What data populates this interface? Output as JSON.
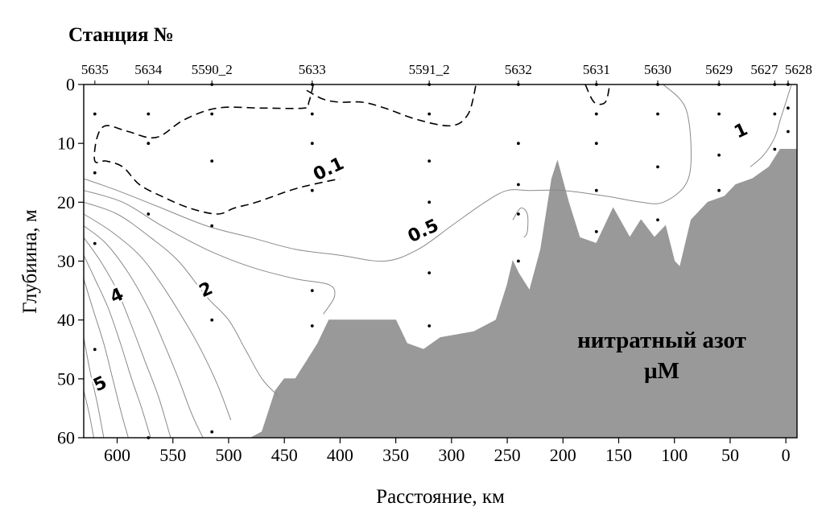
{
  "chart_data": {
    "type": "contour",
    "header": "Станция №",
    "xlabel": "Расстояние, км",
    "ylabel": "Глубиина, м",
    "annotation_line1": "нитратный азот",
    "annotation_line2": "µM",
    "x_reversed": true,
    "xlim": [
      630,
      -10
    ],
    "ylim": [
      0,
      60
    ],
    "x_ticks": [
      {
        "value": 600,
        "label": "600"
      },
      {
        "value": 550,
        "label": "550"
      },
      {
        "value": 500,
        "label": "500"
      },
      {
        "value": 450,
        "label": "450"
      },
      {
        "value": 400,
        "label": "400"
      },
      {
        "value": 350,
        "label": "350"
      },
      {
        "value": 300,
        "label": "300"
      },
      {
        "value": 250,
        "label": "250"
      },
      {
        "value": 200,
        "label": "200"
      },
      {
        "value": 150,
        "label": "150"
      },
      {
        "value": 100,
        "label": "100"
      },
      {
        "value": 50,
        "label": "50"
      },
      {
        "value": 0,
        "label": "0"
      }
    ],
    "y_ticks": [
      {
        "value": 0,
        "label": "0"
      },
      {
        "value": 10,
        "label": "10"
      },
      {
        "value": 20,
        "label": "20"
      },
      {
        "value": 30,
        "label": "30"
      },
      {
        "value": 40,
        "label": "40"
      },
      {
        "value": 50,
        "label": "50"
      },
      {
        "value": 60,
        "label": "60"
      }
    ],
    "stations": [
      {
        "name": "5635",
        "x": 620
      },
      {
        "name": "5634",
        "x": 572
      },
      {
        "name": "5590_2",
        "x": 515
      },
      {
        "name": "5633",
        "x": 425
      },
      {
        "name": "5591_2",
        "x": 320
      },
      {
        "name": "5632",
        "x": 240
      },
      {
        "name": "5631",
        "x": 170
      },
      {
        "name": "5630",
        "x": 115
      },
      {
        "name": "5629",
        "x": 60
      },
      {
        "name": "5627",
        "x": 10
      },
      {
        "name": "5628",
        "x": -2
      }
    ],
    "samples": [
      {
        "x": 620,
        "depths": [
          5,
          15,
          27,
          45
        ]
      },
      {
        "x": 572,
        "depths": [
          5,
          10,
          22,
          60
        ]
      },
      {
        "x": 515,
        "depths": [
          0,
          5,
          13,
          24,
          40,
          59
        ]
      },
      {
        "x": 425,
        "depths": [
          0,
          5,
          10,
          18,
          35,
          41
        ]
      },
      {
        "x": 320,
        "depths": [
          0,
          5,
          13,
          20,
          32,
          41
        ]
      },
      {
        "x": 240,
        "depths": [
          0,
          10,
          17,
          22,
          30
        ]
      },
      {
        "x": 170,
        "depths": [
          0,
          5,
          10,
          18,
          25
        ]
      },
      {
        "x": 115,
        "depths": [
          0,
          5,
          14,
          23
        ]
      },
      {
        "x": 60,
        "depths": [
          0,
          5,
          12,
          18
        ]
      },
      {
        "x": 10,
        "depths": [
          0,
          5,
          11
        ]
      },
      {
        "x": -2,
        "depths": [
          0,
          4,
          8
        ]
      }
    ],
    "bottom_profile": [
      [
        480,
        60
      ],
      [
        470,
        59
      ],
      [
        458,
        52
      ],
      [
        450,
        50
      ],
      [
        440,
        50
      ],
      [
        430,
        47
      ],
      [
        420,
        44
      ],
      [
        410,
        40
      ],
      [
        400,
        40
      ],
      [
        350,
        40
      ],
      [
        340,
        44
      ],
      [
        325,
        45
      ],
      [
        310,
        43
      ],
      [
        280,
        42
      ],
      [
        260,
        40
      ],
      [
        250,
        34
      ],
      [
        245,
        30
      ],
      [
        240,
        32
      ],
      [
        230,
        35
      ],
      [
        220,
        28
      ],
      [
        210,
        16
      ],
      [
        205,
        13
      ],
      [
        195,
        20
      ],
      [
        185,
        26
      ],
      [
        170,
        27
      ],
      [
        155,
        21
      ],
      [
        140,
        26
      ],
      [
        130,
        23
      ],
      [
        118,
        26
      ],
      [
        108,
        24
      ],
      [
        100,
        30
      ],
      [
        95,
        31
      ],
      [
        85,
        23
      ],
      [
        70,
        20
      ],
      [
        55,
        19
      ],
      [
        45,
        17
      ],
      [
        30,
        16
      ],
      [
        15,
        14
      ],
      [
        5,
        11
      ],
      [
        -10,
        11
      ]
    ],
    "contours": [
      {
        "level": 0.1,
        "label": "0.1",
        "dashed": true,
        "points": [
          [
            430,
            1
          ],
          [
            415,
            2.5
          ],
          [
            400,
            3
          ],
          [
            380,
            3
          ],
          [
            360,
            4
          ],
          [
            330,
            6
          ],
          [
            300,
            7
          ],
          [
            285,
            5
          ],
          [
            278,
            0
          ]
        ],
        "label_at": [
          410,
          14.5
        ]
      },
      {
        "level": 0.1,
        "label": "",
        "dashed": true,
        "points": [
          [
            424,
            0
          ],
          [
            428,
            3
          ],
          [
            432,
            4
          ],
          [
            470,
            4
          ],
          [
            510,
            4
          ],
          [
            540,
            6
          ],
          [
            565,
            9
          ],
          [
            590,
            8
          ],
          [
            610,
            7
          ],
          [
            618,
            9
          ],
          [
            620,
            13
          ],
          [
            610,
            13
          ],
          [
            595,
            14
          ],
          [
            580,
            17
          ],
          [
            560,
            19
          ],
          [
            535,
            21
          ],
          [
            510,
            22
          ],
          [
            495,
            21
          ],
          [
            475,
            20
          ],
          [
            445,
            18
          ],
          [
            425,
            17
          ],
          [
            400,
            16
          ]
        ],
        "label_at": null
      },
      {
        "level": 0.1,
        "label": "",
        "dashed": true,
        "points": [
          [
            180,
            0
          ],
          [
            172,
            3
          ],
          [
            162,
            3
          ],
          [
            158,
            0
          ]
        ],
        "label_at": null
      },
      {
        "level": 0.5,
        "label": "0.5",
        "dashed": false,
        "points": [
          [
            630,
            16
          ],
          [
            600,
            18
          ],
          [
            560,
            21
          ],
          [
            520,
            24
          ],
          [
            480,
            26
          ],
          [
            440,
            28
          ],
          [
            400,
            29
          ],
          [
            360,
            30
          ],
          [
            330,
            28
          ],
          [
            300,
            24
          ],
          [
            270,
            20
          ],
          [
            250,
            18
          ],
          [
            230,
            18
          ],
          [
            200,
            18
          ],
          [
            160,
            19
          ],
          [
            130,
            20
          ],
          [
            110,
            20
          ],
          [
            90,
            17
          ],
          [
            85,
            12
          ],
          [
            90,
            4
          ],
          [
            110,
            0
          ]
        ],
        "label_at": [
          325,
          25
        ]
      },
      {
        "level": 1,
        "label": "1",
        "dashed": false,
        "points": [
          [
            -5,
            0
          ],
          [
            0,
            3
          ],
          [
            5,
            6
          ],
          [
            10,
            9
          ],
          [
            20,
            12
          ],
          [
            32,
            14
          ]
        ],
        "label_at": [
          40,
          8
        ]
      },
      {
        "level": 1.5,
        "label": "",
        "dashed": false,
        "points": [
          [
            630,
            18
          ],
          [
            595,
            20
          ],
          [
            560,
            24
          ],
          [
            520,
            28
          ],
          [
            480,
            31
          ],
          [
            440,
            33
          ],
          [
            410,
            34
          ],
          [
            405,
            36
          ],
          [
            415,
            39
          ]
        ],
        "label_at": null
      },
      {
        "level": 2,
        "label": "2",
        "dashed": false,
        "points": [
          [
            630,
            20
          ],
          [
            600,
            22
          ],
          [
            570,
            26
          ],
          [
            545,
            30
          ],
          [
            520,
            36
          ],
          [
            500,
            40
          ],
          [
            485,
            45
          ],
          [
            470,
            50
          ],
          [
            455,
            53
          ]
        ],
        "label_at": [
          520,
          35
        ]
      },
      {
        "level": 2.5,
        "label": "",
        "dashed": false,
        "points": [
          [
            630,
            22
          ],
          [
            605,
            25
          ],
          [
            580,
            29
          ],
          [
            560,
            34
          ],
          [
            540,
            40
          ],
          [
            525,
            45
          ],
          [
            510,
            51
          ],
          [
            498,
            57
          ]
        ],
        "label_at": null
      },
      {
        "level": 3,
        "label": "",
        "dashed": false,
        "points": [
          [
            630,
            24
          ],
          [
            610,
            27
          ],
          [
            590,
            32
          ],
          [
            572,
            38
          ],
          [
            558,
            44
          ],
          [
            545,
            50
          ],
          [
            533,
            56
          ],
          [
            523,
            60
          ]
        ],
        "label_at": null
      },
      {
        "level": 3.5,
        "label": "",
        "dashed": false,
        "points": [
          [
            630,
            26
          ],
          [
            615,
            30
          ],
          [
            600,
            35
          ],
          [
            587,
            41
          ],
          [
            575,
            47
          ],
          [
            563,
            53
          ],
          [
            552,
            60
          ]
        ],
        "label_at": null
      },
      {
        "level": 4,
        "label": "4",
        "dashed": false,
        "points": [
          [
            630,
            29
          ],
          [
            620,
            33
          ],
          [
            608,
            38
          ],
          [
            597,
            44
          ],
          [
            587,
            50
          ],
          [
            578,
            55
          ],
          [
            570,
            60
          ]
        ],
        "label_at": [
          600,
          36
        ]
      },
      {
        "level": 4.5,
        "label": "",
        "dashed": false,
        "points": [
          [
            630,
            33
          ],
          [
            622,
            38
          ],
          [
            612,
            44
          ],
          [
            604,
            50
          ],
          [
            596,
            56
          ],
          [
            590,
            60
          ]
        ],
        "label_at": null
      },
      {
        "level": 5,
        "label": "5",
        "dashed": false,
        "points": [
          [
            630,
            43
          ],
          [
            624,
            49
          ],
          [
            618,
            54
          ],
          [
            612,
            60
          ]
        ],
        "label_at": [
          615,
          51
        ]
      },
      {
        "level": 5.5,
        "label": "",
        "dashed": false,
        "points": [
          [
            630,
            52
          ],
          [
            625,
            56
          ],
          [
            621,
            60
          ]
        ],
        "label_at": null
      },
      {
        "level": 0.5,
        "label": "",
        "dashed": false,
        "points": [
          [
            245,
            23
          ],
          [
            238,
            21
          ],
          [
            232,
            22
          ],
          [
            232,
            25
          ],
          [
            235,
            26
          ]
        ],
        "label_at": null
      }
    ],
    "colors": {
      "seabed": "#999999",
      "contour": "#8a8a8a",
      "dashed": "#000000",
      "axis": "#000000"
    }
  }
}
